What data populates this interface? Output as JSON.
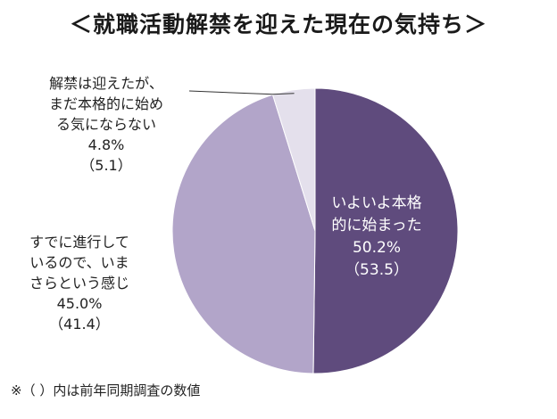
{
  "chart_data": {
    "type": "pie",
    "title": "＜就職活動解禁を迎えた現在の気持ち＞",
    "slices": [
      {
        "label_lines": [
          "いよいよ本格",
          "的に始まった"
        ],
        "value": 50.2,
        "value_text": "50.2%",
        "prev_text": "（53.5）",
        "color": "#5f4b7d"
      },
      {
        "label_lines": [
          "すでに進行して",
          "いるので、いま",
          "さらという感じ"
        ],
        "value": 45.0,
        "value_text": "45.0%",
        "prev_text": "（41.4）",
        "color": "#b2a5c9"
      },
      {
        "label_lines": [
          "解禁は迎えたが、",
          "まだ本格的に始め",
          "る気にならない"
        ],
        "value": 4.8,
        "value_text": "4.8%",
        "prev_text": "（5.1）",
        "color": "#e4e0ec"
      }
    ],
    "start_angle": "12 o'clock",
    "direction": "clockwise"
  },
  "footnote": "※（ ）内は前年同期調査の数値"
}
